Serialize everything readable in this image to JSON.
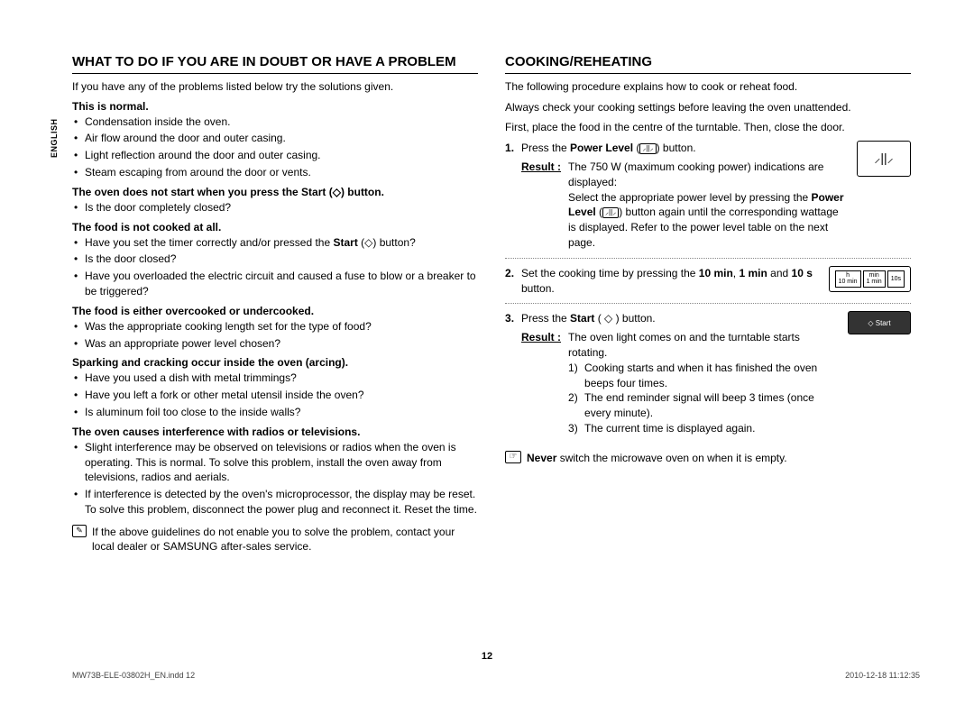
{
  "language_tab": "ENGLISH",
  "page_number": "12",
  "footer_left": "MW73B-ELE-03802H_EN.indd   12",
  "footer_right": "2010-12-18   11:12:35",
  "left": {
    "heading": "WHAT TO DO IF YOU ARE IN DOUBT OR HAVE A PROBLEM",
    "intro": "If you have any of the problems listed below try the solutions given.",
    "sections": [
      {
        "title": "This is normal.",
        "items": [
          "Condensation inside the oven.",
          "Air flow around the door and outer casing.",
          "Light reflection around the door and outer casing.",
          "Steam escaping from around the door or vents."
        ]
      },
      {
        "title": "The oven does not start when you press the Start (◇) button.",
        "items": [
          "Is the door completely closed?"
        ]
      },
      {
        "title": "The food is not cooked at all.",
        "items": [
          "Have you set the timer correctly and/or pressed the Start (◇) button?",
          "Is the door closed?",
          "Have you overloaded the electric circuit and caused a fuse to blow or a breaker to be triggered?"
        ]
      },
      {
        "title": "The food is either overcooked or undercooked.",
        "items": [
          "Was the appropriate cooking length set for the type of food?",
          "Was an appropriate power level chosen?"
        ]
      },
      {
        "title": "Sparking and cracking occur inside the oven (arcing).",
        "items": [
          "Have you used a dish with metal trimmings?",
          "Have you left a fork or other metal utensil inside the oven?",
          "Is aluminum foil too close to the inside walls?"
        ]
      },
      {
        "title": "The oven causes interference with radios or televisions.",
        "items": [
          "Slight interference may be observed on televisions or radios when the oven is operating. This is normal. To solve this problem, install the oven away from televisions, radios and aerials.",
          "If interference is detected by the oven's microprocessor, the display may be reset. To solve this problem, disconnect the power plug and reconnect it. Reset the time."
        ]
      }
    ],
    "note": "If the above guidelines do not enable you to solve the problem, contact your local dealer or SAMSUNG after-sales service."
  },
  "right": {
    "heading": "COOKING/REHEATING",
    "intro1": "The following procedure explains how to cook or reheat food.",
    "intro2": "Always check your cooking settings before leaving the oven unattended.",
    "intro3": "First, place the food in the centre of the turntable. Then, close the door.",
    "step1_line": "Press the Power Level (⸝⸝⸝) button.",
    "step1_result_label": "Result :",
    "step1_result": "The 750 W (maximum cooking power) indications are displayed:",
    "step1_cont": "Select the appropriate power level by pressing the Power Level (⸝⸝⸝) button again until the corresponding wattage is displayed. Refer to the power level table on the next page.",
    "step1_icon": "⸝||⸝",
    "step2_line": "Set the cooking time by pressing the 10 min, 1 min and 10 s button.",
    "step2_t1a": "h",
    "step2_t1b": "10 min",
    "step2_t2a": "min",
    "step2_t2b": "1 min",
    "step2_t3": "10s",
    "step3_line": "Press the Start ( ◇ ) button.",
    "step3_result_label": "Result :",
    "step3_result": "The oven light comes on and the turntable starts rotating.",
    "step3_btn": "◇ Start",
    "step3_items": [
      "Cooking starts and when it has finished the oven beeps four times.",
      "The end reminder signal will beep 3 times (once every minute).",
      "The current time is displayed again."
    ],
    "warn_bold": "Never",
    "warn_rest": " switch the microwave oven on when it is empty."
  }
}
